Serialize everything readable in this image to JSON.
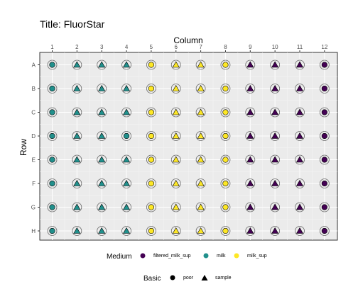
{
  "chart_data": {
    "type": "scatter",
    "title": "Title: FluorStar",
    "xlabel": "Column",
    "ylabel": "Row",
    "columns": [
      "1",
      "2",
      "3",
      "4",
      "5",
      "6",
      "7",
      "8",
      "9",
      "10",
      "11",
      "12"
    ],
    "rows": [
      "A",
      "B",
      "C",
      "D",
      "E",
      "F",
      "G",
      "H"
    ],
    "grid": true,
    "x_axis_position": "top",
    "legend_placement": "bottom",
    "legend_medium": {
      "title": "Medium",
      "entries": [
        {
          "label": "filtered_milk_sup",
          "color": "#440154"
        },
        {
          "label": "milk",
          "color": "#21908c"
        },
        {
          "label": "milk_sup",
          "color": "#fde725"
        }
      ]
    },
    "legend_basic": {
      "title": "Basic",
      "entries": [
        {
          "label": "poor",
          "shape": "circle"
        },
        {
          "label": "sample",
          "shape": "triangle"
        }
      ]
    },
    "medium_by_column": [
      "milk",
      "milk",
      "milk",
      "milk",
      "milk_sup",
      "milk_sup",
      "milk_sup",
      "milk_sup",
      "filtered_milk_sup",
      "filtered_milk_sup",
      "filtered_milk_sup",
      "filtered_milk_sup"
    ],
    "basic_grid": [
      [
        "poor",
        "sample",
        "sample",
        "sample",
        "poor",
        "sample",
        "sample",
        "poor",
        "sample",
        "sample",
        "sample",
        "poor"
      ],
      [
        "poor",
        "sample",
        "sample",
        "sample",
        "poor",
        "sample",
        "sample",
        "poor",
        "sample",
        "sample",
        "sample",
        "poor"
      ],
      [
        "poor",
        "sample",
        "sample",
        "sample",
        "poor",
        "sample",
        "sample",
        "poor",
        "sample",
        "sample",
        "sample",
        "poor"
      ],
      [
        "poor",
        "sample",
        "sample",
        "poor",
        "poor",
        "sample",
        "sample",
        "poor",
        "sample",
        "sample",
        "sample",
        "poor"
      ],
      [
        "poor",
        "sample",
        "sample",
        "sample",
        "poor",
        "sample",
        "sample",
        "poor",
        "sample",
        "sample",
        "sample",
        "poor"
      ],
      [
        "poor",
        "sample",
        "sample",
        "sample",
        "poor",
        "sample",
        "sample",
        "poor",
        "sample",
        "sample",
        "sample",
        "poor"
      ],
      [
        "poor",
        "sample",
        "sample",
        "sample",
        "poor",
        "sample",
        "sample",
        "poor",
        "sample",
        "sample",
        "sample",
        "poor"
      ],
      [
        "poor",
        "sample",
        "sample",
        "sample",
        "poor",
        "sample",
        "sample",
        "poor",
        "sample",
        "sample",
        "sample",
        "poor"
      ]
    ]
  }
}
